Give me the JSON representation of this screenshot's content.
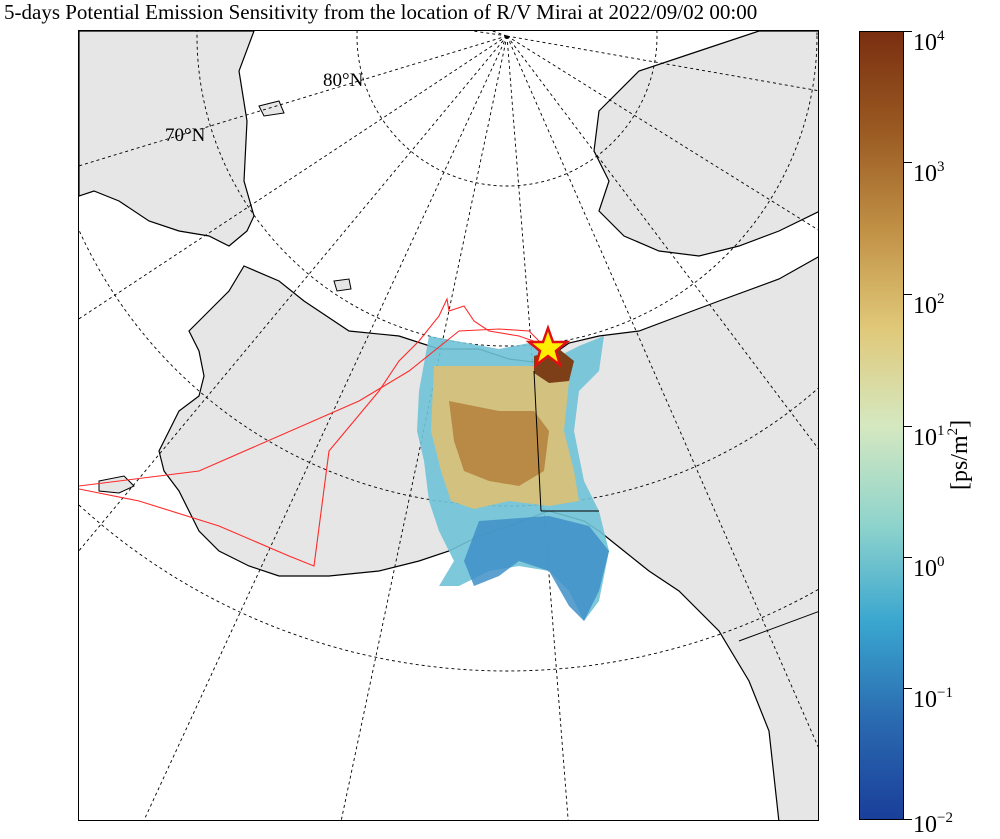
{
  "title": "5-days Potential Emission Sensitivity from the location of R/V Mirai at 2022/09/02 00:00",
  "map": {
    "lat_labels": [
      "80°N",
      "70°N"
    ],
    "land_color": "#e6e6e6",
    "ocean_color": "#ffffff",
    "coastline_color": "#000000",
    "gridline_style": "dashed",
    "trajectory_color": "#ff2a2a",
    "marker": {
      "shape": "star",
      "fill": "#ffee00",
      "stroke": "#e01010"
    }
  },
  "colorbar": {
    "unit_label": "[ps/m",
    "unit_sup": "2",
    "unit_close": "]",
    "scale": "log",
    "ticks": [
      {
        "base": "10",
        "exp": "4"
      },
      {
        "base": "10",
        "exp": "3"
      },
      {
        "base": "10",
        "exp": "2"
      },
      {
        "base": "10",
        "exp": "1"
      },
      {
        "base": "10",
        "exp": "0"
      },
      {
        "base": "10",
        "exp": "−1"
      },
      {
        "base": "10",
        "exp": "−2"
      }
    ],
    "colors": [
      "#7a2f10",
      "#9a5a22",
      "#c09045",
      "#e0c878",
      "#d5e8c0",
      "#8fd4cc",
      "#3aa6cf",
      "#2a6ab0",
      "#1a3f9a"
    ]
  }
}
